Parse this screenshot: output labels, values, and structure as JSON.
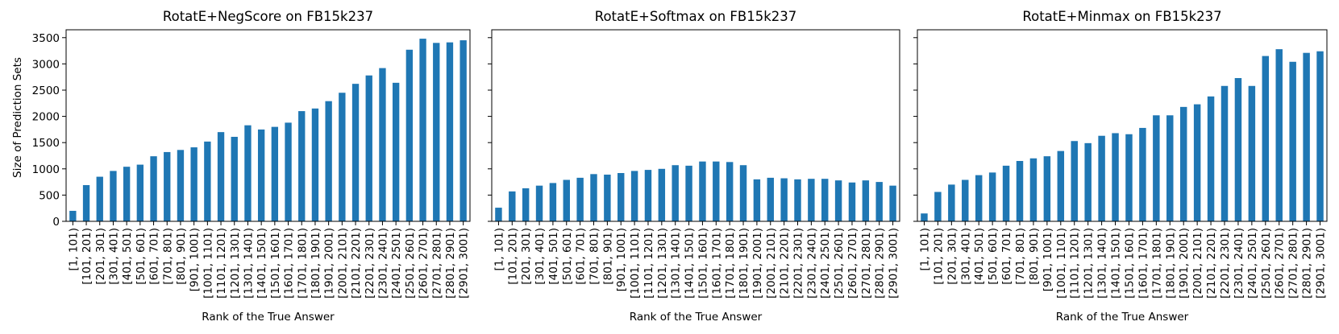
{
  "chart_data": [
    {
      "type": "bar",
      "title": "RotatE+NegScore on FB15k237",
      "xlabel": "Rank of the True Answer",
      "ylabel": "Size of Prediction Sets",
      "ylim": [
        0,
        3650
      ],
      "yticks": [
        "0",
        "500",
        "1000",
        "1500",
        "2000",
        "2500",
        "3000",
        "3500"
      ],
      "color": "#1f77b4",
      "grid": false,
      "categories": [
        "[1, 101)",
        "[101, 201)",
        "[201, 301)",
        "[301, 401)",
        "[401, 501)",
        "[501, 601)",
        "[601, 701)",
        "[701, 801)",
        "[801, 901)",
        "[901, 1001)",
        "[1001, 1101)",
        "[1101, 1201)",
        "[1201, 1301)",
        "[1301, 1401)",
        "[1401, 1501)",
        "[1501, 1601)",
        "[1601, 1701)",
        "[1701, 1801)",
        "[1801, 1901)",
        "[1901, 2001)",
        "[2001, 2101)",
        "[2101, 2201)",
        "[2201, 2301)",
        "[2301, 2401)",
        "[2401, 2501)",
        "[2501, 2601)",
        "[2601, 2701)",
        "[2701, 2801)",
        "[2801, 2901)",
        "[2901, 3001)"
      ],
      "values": [
        200,
        690,
        850,
        960,
        1040,
        1080,
        1240,
        1320,
        1360,
        1410,
        1520,
        1700,
        1610,
        1830,
        1750,
        1800,
        1880,
        2100,
        2150,
        2290,
        2450,
        2620,
        2780,
        2920,
        2640,
        3270,
        3480,
        3400,
        3410,
        3450
      ]
    },
    {
      "type": "bar",
      "title": "RotatE+Softmax on FB15k237",
      "xlabel": "Rank of the True Answer",
      "ylabel": "",
      "ylim": [
        0,
        3650
      ],
      "color": "#1f77b4",
      "grid": false,
      "categories": [
        "[1, 101)",
        "[101, 201)",
        "[201, 301)",
        "[301, 401)",
        "[401, 501)",
        "[501, 601)",
        "[601, 701)",
        "[701, 801)",
        "[801, 901)",
        "[901, 1001)",
        "[1001, 1101)",
        "[1101, 1201)",
        "[1201, 1301)",
        "[1301, 1401)",
        "[1401, 1501)",
        "[1501, 1601)",
        "[1601, 1701)",
        "[1701, 1801)",
        "[1801, 1901)",
        "[1901, 2001)",
        "[2001, 2101)",
        "[2101, 2201)",
        "[2201, 2301)",
        "[2301, 2401)",
        "[2401, 2501)",
        "[2501, 2601)",
        "[2601, 2701)",
        "[2701, 2801)",
        "[2801, 2901)",
        "[2901, 3001)"
      ],
      "values": [
        260,
        570,
        630,
        680,
        730,
        790,
        830,
        900,
        890,
        920,
        960,
        980,
        1000,
        1070,
        1060,
        1140,
        1140,
        1130,
        1070,
        800,
        830,
        820,
        800,
        810,
        810,
        780,
        740,
        780,
        750,
        680
      ]
    },
    {
      "type": "bar",
      "title": "RotatE+Minmax on FB15k237",
      "xlabel": "Rank of the True Answer",
      "ylabel": "",
      "ylim": [
        0,
        3650
      ],
      "color": "#1f77b4",
      "grid": false,
      "categories": [
        "[1, 101)",
        "[101, 201)",
        "[201, 301)",
        "[301, 401)",
        "[401, 501)",
        "[501, 601)",
        "[601, 701)",
        "[701, 801)",
        "[801, 901)",
        "[901, 1001)",
        "[1001, 1101)",
        "[1101, 1201)",
        "[1201, 1301)",
        "[1301, 1401)",
        "[1401, 1501)",
        "[1501, 1601)",
        "[1601, 1701)",
        "[1701, 1801)",
        "[1801, 1901)",
        "[1901, 2001)",
        "[2001, 2101)",
        "[2101, 2201)",
        "[2201, 2301)",
        "[2301, 2401)",
        "[2401, 2501)",
        "[2501, 2601)",
        "[2601, 2701)",
        "[2701, 2801)",
        "[2801, 2901)",
        "[2901, 3001)"
      ],
      "values": [
        150,
        560,
        700,
        790,
        880,
        930,
        1060,
        1150,
        1200,
        1240,
        1340,
        1530,
        1490,
        1630,
        1680,
        1660,
        1780,
        2020,
        2020,
        2180,
        2230,
        2380,
        2580,
        2730,
        2580,
        3150,
        3280,
        3040,
        3210,
        3240
      ]
    }
  ]
}
